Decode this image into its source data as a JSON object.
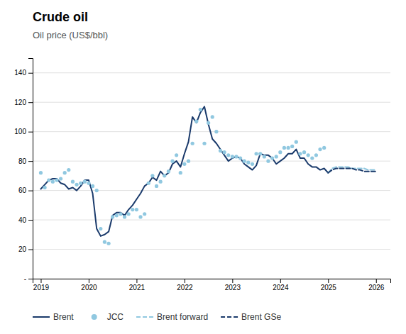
{
  "chart_data": {
    "type": "line",
    "title": "Crude oil",
    "subtitle": "Oil price (US$/bbl)",
    "xlim": [
      2018.83,
      2026.3
    ],
    "xticks": [
      2019,
      2020,
      2021,
      2022,
      2023,
      2024,
      2025,
      2026
    ],
    "ylim": [
      0,
      150
    ],
    "yticks": [
      {
        "value": 0,
        "label": "-"
      },
      20,
      40,
      60,
      80,
      100,
      120,
      140
    ],
    "grid": true,
    "legend": "bottom",
    "series": [
      {
        "name": "Brent",
        "type": "line",
        "line_style": "solid",
        "color": "#1a3a6b",
        "x": [
          2019.0,
          2019.083,
          2019.167,
          2019.25,
          2019.333,
          2019.417,
          2019.5,
          2019.583,
          2019.667,
          2019.75,
          2019.833,
          2019.917,
          2020.0,
          2020.083,
          2020.167,
          2020.25,
          2020.333,
          2020.417,
          2020.5,
          2020.583,
          2020.667,
          2020.75,
          2020.833,
          2020.917,
          2021.0,
          2021.083,
          2021.167,
          2021.25,
          2021.333,
          2021.417,
          2021.5,
          2021.583,
          2021.667,
          2021.75,
          2021.833,
          2021.917,
          2022.0,
          2022.083,
          2022.167,
          2022.25,
          2022.333,
          2022.417,
          2022.5,
          2022.583,
          2022.667,
          2022.75,
          2022.833,
          2022.917,
          2023.0,
          2023.083,
          2023.167,
          2023.25,
          2023.333,
          2023.417,
          2023.5,
          2023.583,
          2023.667,
          2023.75,
          2023.833,
          2023.917,
          2024.0,
          2024.083,
          2024.167,
          2024.25,
          2024.333,
          2024.417,
          2024.5,
          2024.583,
          2024.667,
          2024.75,
          2024.833,
          2024.917,
          2025.0
        ],
        "values": [
          61,
          64,
          67,
          68,
          68,
          65,
          64,
          61,
          62,
          60,
          63,
          67,
          67,
          58,
          34,
          29,
          30,
          32,
          43,
          45,
          45,
          43,
          47,
          50,
          54,
          58,
          63,
          65,
          69,
          67,
          73,
          70,
          72,
          78,
          80,
          76,
          85,
          93,
          110,
          106,
          113,
          117,
          105,
          95,
          92,
          88,
          84,
          80,
          82,
          83,
          82,
          78,
          76,
          74,
          77,
          85,
          84,
          84,
          82,
          78,
          80,
          82,
          85,
          85,
          88,
          82,
          82,
          78,
          76,
          76,
          74,
          75,
          72
        ]
      },
      {
        "name": "JCC",
        "type": "scatter",
        "marker": "circle",
        "color": "#90c8e0",
        "x": [
          2019.0,
          2019.083,
          2019.167,
          2019.25,
          2019.333,
          2019.417,
          2019.5,
          2019.583,
          2019.667,
          2019.75,
          2019.833,
          2019.917,
          2020.0,
          2020.083,
          2020.167,
          2020.25,
          2020.333,
          2020.417,
          2020.5,
          2020.583,
          2020.667,
          2020.75,
          2020.833,
          2020.917,
          2021.0,
          2021.083,
          2021.167,
          2021.25,
          2021.333,
          2021.417,
          2021.5,
          2021.583,
          2021.667,
          2021.75,
          2021.833,
          2021.917,
          2022.0,
          2022.083,
          2022.167,
          2022.25,
          2022.333,
          2022.417,
          2022.5,
          2022.583,
          2022.667,
          2022.75,
          2022.833,
          2022.917,
          2023.0,
          2023.083,
          2023.167,
          2023.25,
          2023.333,
          2023.417,
          2023.5,
          2023.583,
          2023.667,
          2023.75,
          2023.833,
          2023.917,
          2024.0,
          2024.083,
          2024.167,
          2024.25,
          2024.333,
          2024.417,
          2024.5,
          2024.583,
          2024.667,
          2024.75,
          2024.833,
          2024.917
        ],
        "values": [
          72,
          62,
          67,
          66,
          67,
          68,
          72,
          74,
          66,
          64,
          65,
          66,
          65,
          63,
          60,
          34,
          25,
          24,
          42,
          43,
          44,
          42,
          44,
          47,
          47,
          42,
          44,
          65,
          70,
          63,
          66,
          70,
          73,
          80,
          84,
          72,
          78,
          80,
          92,
          107,
          115,
          92,
          106,
          110,
          100,
          87,
          86,
          84,
          83,
          83,
          82,
          80,
          79,
          78,
          85,
          85,
          83,
          80,
          82,
          83,
          86,
          89,
          89,
          90,
          93,
          85,
          86,
          84,
          82,
          84,
          88,
          89
        ]
      },
      {
        "name": "Brent forward",
        "type": "line",
        "line_style": "dashed",
        "color": "#90c8e0",
        "x": [
          2025.0,
          2025.083,
          2025.167,
          2025.25,
          2025.333,
          2025.417,
          2025.5,
          2025.583,
          2025.667,
          2025.75,
          2025.833,
          2025.917,
          2026.0
        ],
        "values": [
          72,
          75,
          76,
          76,
          76,
          76,
          75,
          75,
          75,
          75,
          74,
          74,
          74
        ]
      },
      {
        "name": "Brent GSe",
        "type": "line",
        "line_style": "dashed",
        "color": "#1a3a6b",
        "x": [
          2025.0,
          2025.083,
          2025.167,
          2025.25,
          2025.333,
          2025.417,
          2025.5,
          2025.583,
          2025.667,
          2025.75,
          2025.833,
          2025.917,
          2026.0
        ],
        "values": [
          72,
          74,
          75,
          75,
          75,
          75,
          75,
          74,
          74,
          73,
          73,
          73,
          73
        ]
      }
    ]
  }
}
